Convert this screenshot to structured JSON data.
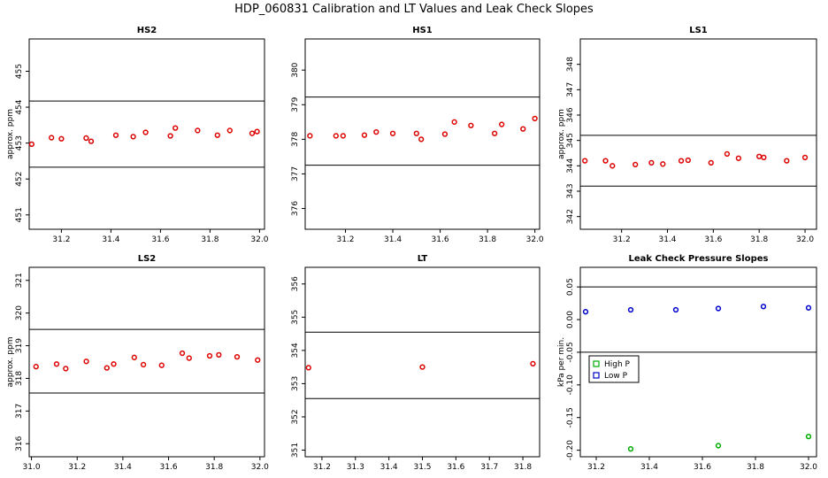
{
  "figure": {
    "title": "HDP_060831  Calibration and LT Values and Leak Check Slopes"
  },
  "chart_data": [
    {
      "type": "scatter",
      "title": "HS2",
      "ylabel": "approx. ppm",
      "xlim": [
        31.07,
        32.02
      ],
      "ylim": [
        450.6,
        455.9
      ],
      "xticks": [
        31.2,
        31.4,
        31.6,
        31.8,
        32.0
      ],
      "xtick_labels": [
        "31.2",
        "31.4",
        "31.6",
        "31.8",
        "32.0"
      ],
      "yticks": [
        451,
        452,
        453,
        454,
        455
      ],
      "ytick_labels": [
        "451",
        "452",
        "453",
        "454",
        "455"
      ],
      "hlines": [
        452.33,
        454.17
      ],
      "grid": false,
      "series": [
        {
          "color": "#dd0000",
          "x": [
            31.08,
            31.16,
            31.2,
            31.3,
            31.32,
            31.42,
            31.49,
            31.54,
            31.64,
            31.66,
            31.75,
            31.83,
            31.88,
            31.97,
            31.99
          ],
          "y": [
            452.97,
            453.15,
            453.12,
            453.14,
            453.05,
            453.22,
            453.18,
            453.3,
            453.2,
            453.42,
            453.35,
            453.22,
            453.35,
            453.27,
            453.32
          ]
        }
      ]
    },
    {
      "type": "scatter",
      "title": "HS1",
      "ylabel": "",
      "xlim": [
        31.03,
        32.02
      ],
      "ylim": [
        375.4,
        380.9
      ],
      "xticks": [
        31.2,
        31.4,
        31.6,
        31.8,
        32.0
      ],
      "xtick_labels": [
        "31.2",
        "31.4",
        "31.6",
        "31.8",
        "32.0"
      ],
      "yticks": [
        376,
        377,
        378,
        379,
        380
      ],
      "ytick_labels": [
        "376",
        "377",
        "378",
        "379",
        "380"
      ],
      "hlines": [
        377.25,
        379.22
      ],
      "grid": false,
      "series": [
        {
          "color": "#dd0000",
          "x": [
            31.05,
            31.16,
            31.19,
            31.28,
            31.33,
            31.4,
            31.5,
            31.52,
            31.62,
            31.66,
            31.73,
            31.83,
            31.86,
            31.95,
            32.0
          ],
          "y": [
            378.1,
            378.1,
            378.1,
            378.12,
            378.21,
            378.17,
            378.17,
            378.0,
            378.15,
            378.5,
            378.4,
            378.17,
            378.43,
            378.3,
            378.6
          ]
        }
      ]
    },
    {
      "type": "scatter",
      "title": "LS1",
      "ylabel": "approx. ppm",
      "xlim": [
        31.02,
        32.05
      ],
      "ylim": [
        341.5,
        349.0
      ],
      "xticks": [
        31.2,
        31.4,
        31.6,
        31.8,
        32.0
      ],
      "xtick_labels": [
        "31.2",
        "31.4",
        "31.6",
        "31.8",
        "32.0"
      ],
      "yticks": [
        342,
        343,
        344,
        345,
        346,
        347,
        348
      ],
      "ytick_labels": [
        "342",
        "343",
        "344",
        "345",
        "346",
        "347",
        "348"
      ],
      "hlines": [
        343.2,
        345.2
      ],
      "grid": false,
      "series": [
        {
          "color": "#dd0000",
          "x": [
            31.04,
            31.13,
            31.16,
            31.26,
            31.33,
            31.38,
            31.46,
            31.49,
            31.59,
            31.66,
            31.71,
            31.8,
            31.82,
            31.92,
            32.0
          ],
          "y": [
            344.2,
            344.2,
            344.0,
            344.05,
            344.12,
            344.07,
            344.2,
            344.22,
            344.12,
            344.47,
            344.3,
            344.37,
            344.33,
            344.2,
            344.33
          ]
        }
      ]
    },
    {
      "type": "scatter",
      "title": "LS2",
      "ylabel": "approx. ppm",
      "xlim": [
        30.99,
        32.02
      ],
      "ylim": [
        315.6,
        321.4
      ],
      "xticks": [
        31.0,
        31.2,
        31.4,
        31.6,
        31.8,
        32.0
      ],
      "xtick_labels": [
        "31.0",
        "31.2",
        "31.4",
        "31.6",
        "31.8",
        "32.0"
      ],
      "yticks": [
        316,
        317,
        318,
        319,
        320,
        321
      ],
      "ytick_labels": [
        "316",
        "317",
        "318",
        "319",
        "320",
        "321"
      ],
      "hlines": [
        317.55,
        319.5
      ],
      "grid": false,
      "series": [
        {
          "color": "#dd0000",
          "x": [
            31.02,
            31.11,
            31.15,
            31.24,
            31.33,
            31.36,
            31.45,
            31.49,
            31.57,
            31.66,
            31.69,
            31.78,
            31.82,
            31.9,
            31.99
          ],
          "y": [
            318.36,
            318.44,
            318.3,
            318.52,
            318.32,
            318.44,
            318.64,
            318.42,
            318.4,
            318.77,
            318.62,
            318.69,
            318.72,
            318.66,
            318.56
          ]
        }
      ]
    },
    {
      "type": "scatter",
      "title": "LT",
      "ylabel": "",
      "xlim": [
        31.15,
        31.85
      ],
      "ylim": [
        350.8,
        356.5
      ],
      "xticks": [
        31.2,
        31.3,
        31.4,
        31.5,
        31.6,
        31.7,
        31.8
      ],
      "xtick_labels": [
        "31.2",
        "31.3",
        "31.4",
        "31.5",
        "31.6",
        "31.7",
        "31.8"
      ],
      "yticks": [
        351,
        352,
        353,
        354,
        355,
        356
      ],
      "ytick_labels": [
        "351",
        "352",
        "353",
        "354",
        "355",
        "356"
      ],
      "hlines": [
        352.55,
        354.55
      ],
      "grid": false,
      "series": [
        {
          "color": "#dd0000",
          "x": [
            31.16,
            31.5,
            31.83
          ],
          "y": [
            353.48,
            353.5,
            353.6
          ]
        }
      ]
    },
    {
      "type": "scatter",
      "title": "Leak Check Pressure Slopes",
      "ylabel": "kPa per min.",
      "xlim": [
        31.14,
        32.03
      ],
      "ylim": [
        -0.21,
        0.08
      ],
      "xticks": [
        31.2,
        31.4,
        31.6,
        31.8,
        32.0
      ],
      "xtick_labels": [
        "31.2",
        "31.4",
        "31.6",
        "31.8",
        "32.0"
      ],
      "yticks": [
        -0.2,
        -0.15,
        -0.1,
        -0.05,
        0.0,
        0.05
      ],
      "ytick_labels": [
        "-0.20",
        "-0.15",
        "-0.10",
        "-0.05",
        "0.00",
        "0.05"
      ],
      "hlines": [
        -0.05,
        0.05
      ],
      "grid": false,
      "legend": {
        "position": "left-middle"
      },
      "series": [
        {
          "name": "High P",
          "color": "#00aa00",
          "x": [
            31.33,
            31.66,
            32.0
          ],
          "y": [
            -0.198,
            -0.193,
            -0.179
          ]
        },
        {
          "name": "Low P",
          "color": "#0000cc",
          "x": [
            31.16,
            31.33,
            31.5,
            31.66,
            31.83,
            32.0
          ],
          "y": [
            0.012,
            0.015,
            0.015,
            0.017,
            0.02,
            0.018
          ]
        }
      ]
    }
  ]
}
